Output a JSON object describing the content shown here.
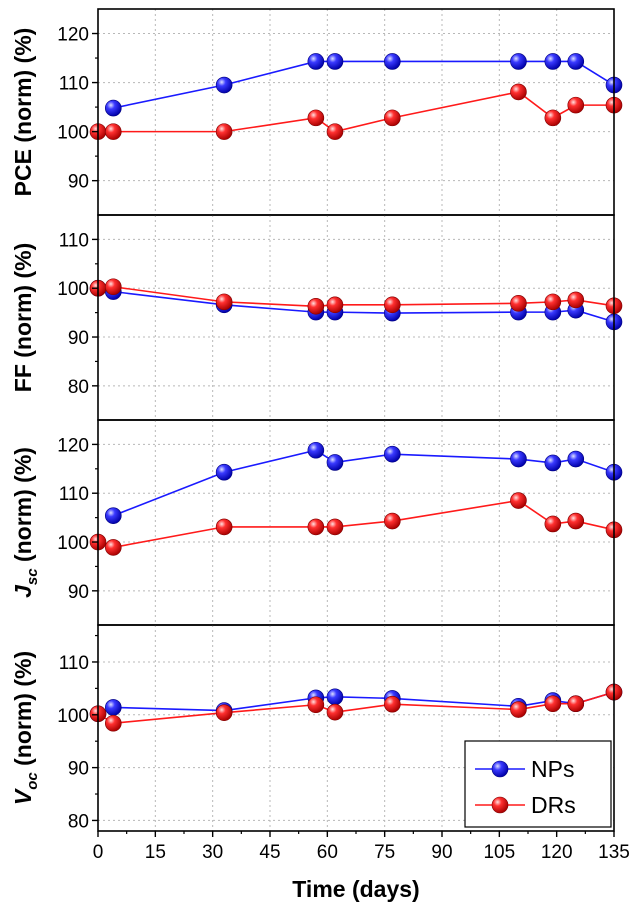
{
  "chart_data": {
    "type": "line",
    "xlabel": "Time (days)",
    "x_ticks": [
      0,
      15,
      30,
      45,
      60,
      75,
      90,
      105,
      120,
      135
    ],
    "xlim": [
      0,
      135
    ],
    "grid": true,
    "legend": {
      "placement": "bottom-right",
      "entries": [
        "NPs",
        "DRs"
      ]
    },
    "colors": {
      "NPs": "#1a1aff",
      "DRs": "#ff1a1a"
    },
    "panels": [
      {
        "ylabel_main": "PCE",
        "ylabel_sub": "",
        "ylabel_rest": " (norm) (%)",
        "ylim": [
          83,
          125
        ],
        "y_ticks": [
          90,
          100,
          110,
          120
        ],
        "series": [
          {
            "name": "NPs",
            "x": [
              4,
              33,
              57,
              62,
              77,
              110,
              119,
              125,
              135
            ],
            "y": [
              104.8,
              109.5,
              114.3,
              114.3,
              114.3,
              114.3,
              114.3,
              114.3,
              109.5
            ]
          },
          {
            "name": "DRs",
            "x": [
              0,
              4,
              33,
              57,
              62,
              77,
              110,
              119,
              125,
              135
            ],
            "y": [
              100,
              100,
              100,
              102.8,
              100,
              102.8,
              108.1,
              102.8,
              105.4,
              105.4
            ]
          }
        ]
      },
      {
        "ylabel_main": "FF",
        "ylabel_sub": "",
        "ylabel_rest": " (norm) (%)",
        "ylim": [
          73,
          115
        ],
        "y_ticks": [
          80,
          90,
          100,
          110
        ],
        "series": [
          {
            "name": "NPs",
            "x": [
              0,
              4,
              33,
              57,
              62,
              77,
              110,
              119,
              125,
              135
            ],
            "y": [
              100,
              99.3,
              96.6,
              95.1,
              95.1,
              94.9,
              95.1,
              95.1,
              95.5,
              93.1
            ]
          },
          {
            "name": "DRs",
            "x": [
              0,
              4,
              33,
              57,
              62,
              77,
              110,
              119,
              125,
              135
            ],
            "y": [
              100,
              100.3,
              97.2,
              96.3,
              96.6,
              96.6,
              96.9,
              97.2,
              97.6,
              96.4
            ]
          }
        ]
      },
      {
        "ylabel_main": "J",
        "ylabel_sub": "sc",
        "ylabel_rest": " (norm) (%)",
        "ylim": [
          83,
          125
        ],
        "y_ticks": [
          90,
          100,
          110,
          120
        ],
        "series": [
          {
            "name": "NPs",
            "x": [
              4,
              33,
              57,
              62,
              77,
              110,
              119,
              125,
              135
            ],
            "y": [
              105.4,
              114.3,
              118.8,
              116.3,
              118,
              117,
              116.2,
              117,
              114.3
            ]
          },
          {
            "name": "DRs",
            "x": [
              0,
              4,
              33,
              57,
              62,
              77,
              110,
              119,
              125,
              135
            ],
            "y": [
              100,
              98.9,
              103.1,
              103.1,
              103.1,
              104.3,
              108.5,
              103.7,
              104.3,
              102.5
            ]
          }
        ]
      },
      {
        "ylabel_main": "V",
        "ylabel_sub": "oc",
        "ylabel_rest": " (norm) (%)",
        "ylim": [
          78,
          117
        ],
        "y_ticks": [
          80,
          90,
          100,
          110
        ],
        "series": [
          {
            "name": "NPs",
            "x": [
              0,
              4,
              33,
              57,
              62,
              77,
              110,
              119,
              125,
              135
            ],
            "y": [
              100.2,
              101.4,
              100.8,
              103.2,
              103.4,
              103.1,
              101.6,
              102.7,
              102.1,
              104.3
            ]
          },
          {
            "name": "DRs",
            "x": [
              0,
              4,
              33,
              57,
              62,
              77,
              110,
              119,
              125,
              135
            ],
            "y": [
              100.2,
              98.4,
              100.4,
              101.9,
              100.5,
              102,
              101,
              102.1,
              102.1,
              104.3
            ]
          }
        ]
      }
    ]
  }
}
